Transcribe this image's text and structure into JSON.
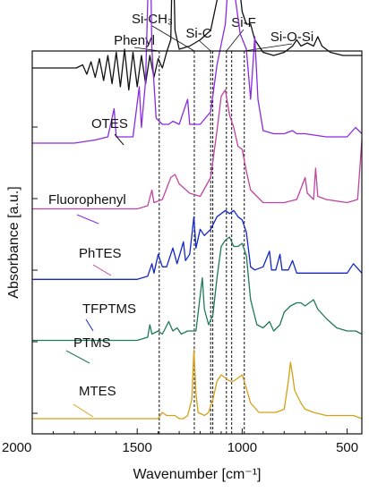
{
  "chart_data": {
    "type": "line",
    "title": "",
    "xlabel": "Wavenumber [cm⁻¹]",
    "ylabel": "Absorbance [a.u.]",
    "xlim": [
      2000,
      430
    ],
    "x_reversed": true,
    "xticks": [
      {
        "value": 2000,
        "label": "2000"
      },
      {
        "value": 1500,
        "label": "1500"
      },
      {
        "value": 1000,
        "label": "1000"
      },
      {
        "value": 500,
        "label": "500"
      }
    ],
    "y_ticks_labeled": false,
    "grid": false,
    "legend": "none",
    "peak_markers": [
      {
        "label": "Phenyl",
        "x": 1395
      },
      {
        "label": "Si-CH₃",
        "x": 1228
      },
      {
        "label": "Si-C",
        "x": 1150
      },
      {
        "label": "Si-F",
        "x": 1075
      },
      {
        "label": "Si-O-Si",
        "x": 990
      }
    ],
    "extra_marker_lines_x": [
      1140,
      1050
    ],
    "series": [
      {
        "name": "OTES",
        "color": "#111111",
        "baseline": 1.12,
        "points": [
          [
            2000,
            0.0
          ],
          [
            1920,
            0.0
          ],
          [
            1850,
            0.0
          ],
          [
            1790,
            0.0
          ],
          [
            1760,
            0.01
          ],
          [
            1740,
            -0.02
          ],
          [
            1720,
            0.02
          ],
          [
            1700,
            -0.03
          ],
          [
            1680,
            0.03
          ],
          [
            1660,
            -0.04
          ],
          [
            1640,
            0.04
          ],
          [
            1620,
            -0.05
          ],
          [
            1600,
            0.05
          ],
          [
            1580,
            -0.06
          ],
          [
            1560,
            0.06
          ],
          [
            1540,
            -0.07
          ],
          [
            1520,
            0.05
          ],
          [
            1500,
            -0.06
          ],
          [
            1480,
            0.04
          ],
          [
            1460,
            -0.05
          ],
          [
            1440,
            0.04
          ],
          [
            1420,
            -0.03
          ],
          [
            1400,
            0.03
          ],
          [
            1380,
            0.0
          ],
          [
            1360,
            0.05
          ],
          [
            1340,
            0.09
          ],
          [
            1330,
            0.43
          ],
          [
            1320,
            0.12
          ],
          [
            1300,
            0.06
          ],
          [
            1250,
            0.07
          ],
          [
            1200,
            0.09
          ],
          [
            1150,
            0.12
          ],
          [
            1100,
            0.28
          ],
          [
            1080,
            0.48
          ],
          [
            1060,
            0.5
          ],
          [
            1040,
            0.44
          ],
          [
            1020,
            0.3
          ],
          [
            1000,
            0.18
          ],
          [
            980,
            0.14
          ],
          [
            960,
            0.14
          ],
          [
            940,
            0.09
          ],
          [
            900,
            0.05
          ],
          [
            850,
            0.04
          ],
          [
            800,
            0.05
          ],
          [
            760,
            0.07
          ],
          [
            740,
            0.09
          ],
          [
            720,
            0.07
          ],
          [
            690,
            0.08
          ],
          [
            660,
            0.07
          ],
          [
            640,
            0.1
          ],
          [
            620,
            0.07
          ],
          [
            580,
            0.05
          ],
          [
            520,
            0.04
          ],
          [
            470,
            0.04
          ],
          [
            430,
            0.04
          ]
        ]
      },
      {
        "name": "Fluorophenyl",
        "color": "#8a2be2",
        "baseline": 0.88,
        "points": [
          [
            2000,
            0.0
          ],
          [
            1800,
            0.0
          ],
          [
            1700,
            0.01
          ],
          [
            1640,
            0.02
          ],
          [
            1610,
            0.11
          ],
          [
            1600,
            0.02
          ],
          [
            1520,
            0.02
          ],
          [
            1490,
            0.18
          ],
          [
            1480,
            0.05
          ],
          [
            1460,
            0.2
          ],
          [
            1440,
            0.71
          ],
          [
            1430,
            0.3
          ],
          [
            1410,
            0.08
          ],
          [
            1380,
            0.06
          ],
          [
            1350,
            0.06
          ],
          [
            1330,
            0.07
          ],
          [
            1300,
            0.06
          ],
          [
            1260,
            0.14
          ],
          [
            1250,
            0.06
          ],
          [
            1200,
            0.06
          ],
          [
            1150,
            0.1
          ],
          [
            1120,
            0.25
          ],
          [
            1080,
            0.38
          ],
          [
            1060,
            0.58
          ],
          [
            1040,
            0.5
          ],
          [
            1010,
            0.35
          ],
          [
            980,
            0.3
          ],
          [
            960,
            0.14
          ],
          [
            940,
            0.34
          ],
          [
            925,
            0.14
          ],
          [
            900,
            0.04
          ],
          [
            850,
            0.03
          ],
          [
            800,
            0.03
          ],
          [
            760,
            0.04
          ],
          [
            740,
            0.03
          ],
          [
            700,
            0.03
          ],
          [
            600,
            0.02
          ],
          [
            500,
            0.02
          ],
          [
            460,
            0.05
          ],
          [
            430,
            0.03
          ]
        ]
      },
      {
        "name": "PhTES",
        "color": "#c044a0",
        "baseline": 0.67,
        "points": [
          [
            2000,
            0.0
          ],
          [
            1800,
            0.0
          ],
          [
            1600,
            0.0
          ],
          [
            1500,
            0.0
          ],
          [
            1450,
            0.01
          ],
          [
            1430,
            0.06
          ],
          [
            1420,
            0.02
          ],
          [
            1380,
            0.03
          ],
          [
            1340,
            0.1
          ],
          [
            1320,
            0.11
          ],
          [
            1300,
            0.08
          ],
          [
            1250,
            0.05
          ],
          [
            1200,
            0.04
          ],
          [
            1150,
            0.1
          ],
          [
            1120,
            0.25
          ],
          [
            1100,
            0.36
          ],
          [
            1080,
            0.38
          ],
          [
            1060,
            0.3
          ],
          [
            1040,
            0.26
          ],
          [
            1020,
            0.2
          ],
          [
            1000,
            0.19
          ],
          [
            980,
            0.12
          ],
          [
            960,
            0.06
          ],
          [
            900,
            0.02
          ],
          [
            800,
            0.02
          ],
          [
            740,
            0.03
          ],
          [
            700,
            0.1
          ],
          [
            690,
            0.05
          ],
          [
            660,
            0.03
          ],
          [
            650,
            0.13
          ],
          [
            640,
            0.04
          ],
          [
            600,
            0.03
          ],
          [
            500,
            0.02
          ],
          [
            450,
            0.03
          ],
          [
            430,
            0.22
          ]
        ]
      },
      {
        "name": "TFPTMS",
        "color": "#1428c8",
        "baseline": 0.445,
        "points": [
          [
            2000,
            0.0
          ],
          [
            1800,
            0.0
          ],
          [
            1600,
            0.0
          ],
          [
            1500,
            0.0
          ],
          [
            1450,
            0.01
          ],
          [
            1430,
            0.05
          ],
          [
            1420,
            0.02
          ],
          [
            1400,
            0.08
          ],
          [
            1380,
            0.04
          ],
          [
            1360,
            0.04
          ],
          [
            1330,
            0.1
          ],
          [
            1310,
            0.05
          ],
          [
            1280,
            0.12
          ],
          [
            1270,
            0.06
          ],
          [
            1250,
            0.08
          ],
          [
            1230,
            0.2
          ],
          [
            1220,
            0.1
          ],
          [
            1200,
            0.16
          ],
          [
            1180,
            0.14
          ],
          [
            1150,
            0.16
          ],
          [
            1120,
            0.2
          ],
          [
            1080,
            0.22
          ],
          [
            1060,
            0.21
          ],
          [
            1040,
            0.22
          ],
          [
            1020,
            0.2
          ],
          [
            1000,
            0.19
          ],
          [
            980,
            0.15
          ],
          [
            960,
            0.04
          ],
          [
            940,
            0.03
          ],
          [
            900,
            0.04
          ],
          [
            870,
            0.09
          ],
          [
            860,
            0.03
          ],
          [
            840,
            0.03
          ],
          [
            820,
            0.08
          ],
          [
            810,
            0.03
          ],
          [
            780,
            0.03
          ],
          [
            760,
            0.06
          ],
          [
            740,
            0.02
          ],
          [
            600,
            0.02
          ],
          [
            500,
            0.02
          ],
          [
            470,
            0.05
          ],
          [
            430,
            0.02
          ]
        ]
      },
      {
        "name": "PTMS",
        "color": "#1f7a5a",
        "baseline": 0.25,
        "points": [
          [
            2000,
            0.0
          ],
          [
            1800,
            0.0
          ],
          [
            1600,
            0.0
          ],
          [
            1500,
            0.0
          ],
          [
            1450,
            0.01
          ],
          [
            1440,
            0.05
          ],
          [
            1430,
            0.02
          ],
          [
            1400,
            0.03
          ],
          [
            1380,
            0.02
          ],
          [
            1350,
            0.06
          ],
          [
            1330,
            0.03
          ],
          [
            1310,
            0.04
          ],
          [
            1290,
            0.02
          ],
          [
            1260,
            0.03
          ],
          [
            1220,
            0.03
          ],
          [
            1190,
            0.2
          ],
          [
            1180,
            0.1
          ],
          [
            1160,
            0.05
          ],
          [
            1140,
            0.08
          ],
          [
            1120,
            0.2
          ],
          [
            1100,
            0.3
          ],
          [
            1080,
            0.32
          ],
          [
            1060,
            0.33
          ],
          [
            1040,
            0.3
          ],
          [
            1020,
            0.3
          ],
          [
            1000,
            0.31
          ],
          [
            980,
            0.27
          ],
          [
            960,
            0.13
          ],
          [
            930,
            0.05
          ],
          [
            900,
            0.04
          ],
          [
            870,
            0.06
          ],
          [
            850,
            0.03
          ],
          [
            820,
            0.05
          ],
          [
            800,
            0.09
          ],
          [
            770,
            0.11
          ],
          [
            740,
            0.12
          ],
          [
            720,
            0.12
          ],
          [
            700,
            0.11
          ],
          [
            660,
            0.13
          ],
          [
            640,
            0.1
          ],
          [
            600,
            0.07
          ],
          [
            550,
            0.04
          ],
          [
            500,
            0.03
          ],
          [
            460,
            0.03
          ],
          [
            430,
            0.02
          ]
        ]
      },
      {
        "name": "MTES",
        "color": "#d4a017",
        "baseline": 0.0,
        "points": [
          [
            2000,
            0.0
          ],
          [
            1800,
            0.0
          ],
          [
            1600,
            0.0
          ],
          [
            1500,
            0.0
          ],
          [
            1400,
            0.0
          ],
          [
            1380,
            0.02
          ],
          [
            1360,
            0.01
          ],
          [
            1340,
            0.01
          ],
          [
            1320,
            0.01
          ],
          [
            1300,
            0.0
          ],
          [
            1280,
            0.0
          ],
          [
            1260,
            0.01
          ],
          [
            1240,
            0.06
          ],
          [
            1230,
            0.22
          ],
          [
            1220,
            0.08
          ],
          [
            1210,
            0.02
          ],
          [
            1180,
            0.01
          ],
          [
            1160,
            0.02
          ],
          [
            1140,
            0.06
          ],
          [
            1120,
            0.12
          ],
          [
            1100,
            0.14
          ],
          [
            1080,
            0.13
          ],
          [
            1060,
            0.12
          ],
          [
            1040,
            0.12
          ],
          [
            1020,
            0.13
          ],
          [
            1000,
            0.14
          ],
          [
            990,
            0.12
          ],
          [
            960,
            0.05
          ],
          [
            920,
            0.02
          ],
          [
            880,
            0.02
          ],
          [
            840,
            0.02
          ],
          [
            800,
            0.03
          ],
          [
            780,
            0.12
          ],
          [
            770,
            0.18
          ],
          [
            760,
            0.14
          ],
          [
            750,
            0.09
          ],
          [
            720,
            0.05
          ],
          [
            700,
            0.03
          ],
          [
            660,
            0.02
          ],
          [
            600,
            0.01
          ],
          [
            520,
            0.01
          ],
          [
            470,
            0.01
          ],
          [
            430,
            0.0
          ]
        ]
      }
    ]
  }
}
